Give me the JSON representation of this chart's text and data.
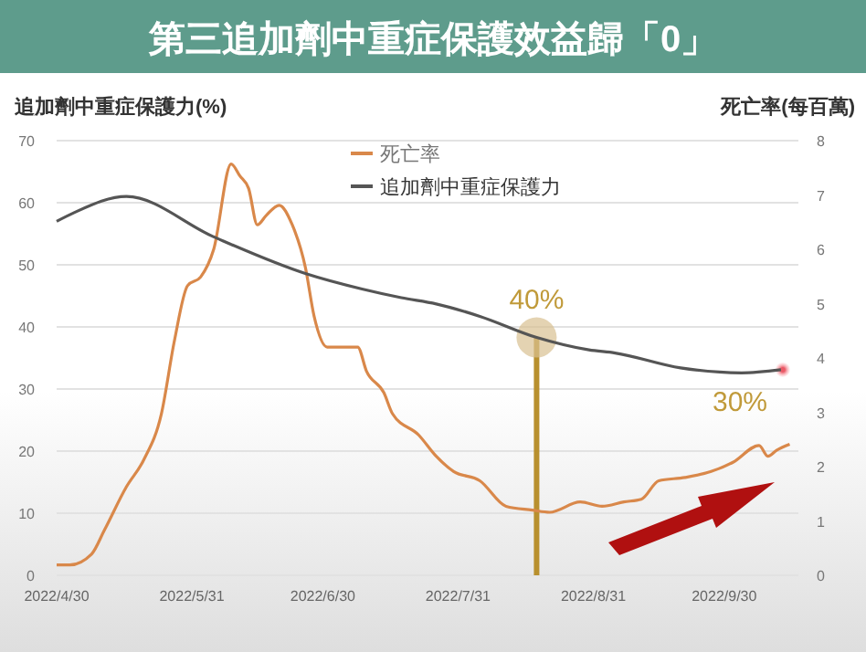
{
  "chart_data": {
    "type": "line",
    "title": "第三追加劑中重症保護效益歸「0」",
    "ylabel": "追加劑中重症保護力(%)",
    "y2label": "死亡率(每百萬)",
    "series": [
      {
        "name": "死亡率",
        "color": "#d9884a",
        "axis": "y2",
        "x": [
          "2022-04-30",
          "2022-05-03",
          "2022-05-08",
          "2022-05-11",
          "2022-05-16",
          "2022-05-20",
          "2022-05-24",
          "2022-05-27",
          "2022-05-30",
          "2022-06-02",
          "2022-06-05",
          "2022-06-09",
          "2022-06-11",
          "2022-06-13",
          "2022-06-15",
          "2022-06-17",
          "2022-06-20",
          "2022-06-23",
          "2022-06-26",
          "2022-06-28",
          "2022-07-01",
          "2022-07-04",
          "2022-07-08",
          "2022-07-10",
          "2022-07-14",
          "2022-07-16",
          "2022-07-22",
          "2022-07-26",
          "2022-07-30",
          "2022-08-05",
          "2022-08-11",
          "2022-08-17",
          "2022-08-21",
          "2022-08-28",
          "2022-09-02",
          "2022-09-07",
          "2022-09-11",
          "2022-09-15",
          "2022-09-21",
          "2022-09-27",
          "2022-10-02",
          "2022-10-08",
          "2022-10-10",
          "2022-10-12",
          "2022-10-15"
        ],
        "values": [
          0.19,
          0.19,
          0.39,
          0.84,
          1.63,
          2.13,
          2.97,
          4.32,
          5.33,
          5.49,
          6.0,
          7.57,
          7.35,
          7.12,
          6.45,
          6.62,
          6.81,
          6.45,
          5.67,
          4.77,
          4.2,
          4.2,
          4.2,
          3.76,
          3.36,
          2.97,
          2.58,
          2.19,
          1.91,
          1.74,
          1.27,
          1.2,
          1.16,
          1.35,
          1.27,
          1.35,
          1.4,
          1.74,
          1.8,
          1.91,
          2.08,
          2.39,
          2.19,
          2.3,
          2.41
        ]
      },
      {
        "name": "追加劑中重症保護力",
        "color": "#555555",
        "x": [
          "2022-04-30",
          "2022-05-04",
          "2022-05-16",
          "2022-06-05",
          "2022-06-26",
          "2022-07-09",
          "2022-07-18",
          "2022-07-26",
          "2022-08-05",
          "2022-08-18",
          "2022-08-30",
          "2022-09-05",
          "2022-09-20",
          "2022-10-04",
          "2022-10-13"
        ],
        "values": [
          57,
          58.4,
          61,
          54.5,
          48.6,
          46.1,
          44.7,
          43.7,
          41.7,
          38.3,
          36.3,
          35.8,
          33.4,
          32.6,
          33.1
        ]
      }
    ],
    "xlim": [
      "2022-04-30",
      "2022-10-17"
    ],
    "xticks": [
      {
        "value": "2022-04-30",
        "label": "2022/4/30"
      },
      {
        "value": "2022-05-31",
        "label": "2022/5/31"
      },
      {
        "value": "2022-06-30",
        "label": "2022/6/30"
      },
      {
        "value": "2022-07-31",
        "label": "2022/7/31"
      },
      {
        "value": "2022-08-31",
        "label": "2022/8/31"
      },
      {
        "value": "2022-09-30",
        "label": "2022/9/30"
      }
    ],
    "ylim": [
      0,
      70
    ],
    "yticks": [
      0,
      10,
      20,
      30,
      40,
      50,
      60,
      70
    ],
    "y2lim": [
      0,
      8
    ],
    "y2ticks": [
      0,
      1,
      2,
      3,
      4,
      5,
      6,
      7,
      8
    ],
    "grid": "y",
    "legend": "top right",
    "ref_lines": [
      {
        "axis": "x",
        "value": "2022-08-18",
        "color": "#b8902e"
      }
    ],
    "annotations": [
      {
        "text": "40%",
        "x": "2022-08-18",
        "y": 38.3
      },
      "30%"
    ]
  }
}
